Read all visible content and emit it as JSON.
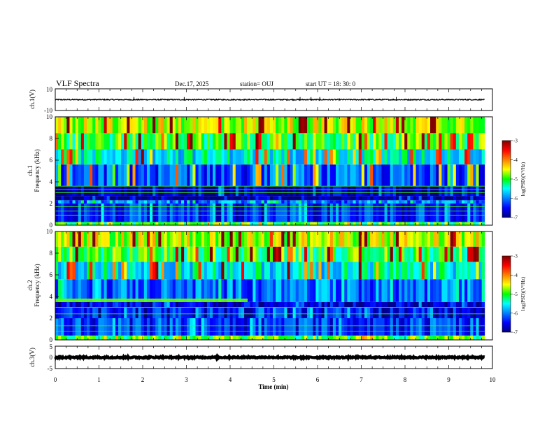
{
  "header": {
    "title": "VLF Spectra",
    "date": "Dec.17, 2025",
    "station": "station= OUJ",
    "start": "start  UT =   18: 30: 0"
  },
  "chart_data": [
    {
      "id": "ch1-waveform",
      "type": "line",
      "ylabel": "ch.1(V)",
      "ylim": [
        -10,
        10
      ],
      "yticks": [
        "10",
        "-10"
      ],
      "baseline": 0,
      "amplitude": 0.5,
      "spikes_min": [
        1.8,
        2.95,
        5.6,
        5.85,
        6.05,
        7.8
      ]
    },
    {
      "id": "ch1-spectrogram",
      "type": "heatmap",
      "ylabel": "ch.1\nFrequency  (kHz)",
      "ylim": [
        0,
        10
      ],
      "yticks": [
        "0",
        "2",
        "4",
        "6",
        "8",
        "10"
      ],
      "bands": [
        {
          "from_khz": 0.0,
          "to_khz": 0.3,
          "level": -5.0
        },
        {
          "from_khz": 0.3,
          "to_khz": 2.0,
          "level": -6.4
        },
        {
          "from_khz": 2.0,
          "to_khz": 2.3,
          "level": -6.0
        },
        {
          "from_khz": 2.3,
          "to_khz": 2.7,
          "level": -7.0
        },
        {
          "from_khz": 2.7,
          "to_khz": 3.6,
          "level": -6.8
        },
        {
          "from_khz": 3.6,
          "to_khz": 5.6,
          "level": -6.2
        },
        {
          "from_khz": 5.6,
          "to_khz": 7.0,
          "level": -5.5
        },
        {
          "from_khz": 7.0,
          "to_khz": 8.5,
          "level": -5.0
        },
        {
          "from_khz": 8.5,
          "to_khz": 10.0,
          "level": -4.6
        }
      ],
      "bright_lines_khz": [
        0.9,
        1.3,
        1.7,
        3.0,
        3.3,
        3.6
      ]
    },
    {
      "id": "ch2-spectrogram",
      "type": "heatmap",
      "ylabel": "ch.2\nFrequency  (kHz)",
      "ylim": [
        0,
        10
      ],
      "yticks": [
        "0",
        "2",
        "4",
        "6",
        "8",
        "10"
      ],
      "bands": [
        {
          "from_khz": 0.0,
          "to_khz": 0.4,
          "level": -5.0
        },
        {
          "from_khz": 0.4,
          "to_khz": 2.0,
          "level": -6.3
        },
        {
          "from_khz": 2.0,
          "to_khz": 3.0,
          "level": -6.5
        },
        {
          "from_khz": 3.0,
          "to_khz": 3.5,
          "level": -6.7
        },
        {
          "from_khz": 3.5,
          "to_khz": 5.6,
          "level": -6.1
        },
        {
          "from_khz": 5.6,
          "to_khz": 7.2,
          "level": -5.5
        },
        {
          "from_khz": 7.2,
          "to_khz": 8.6,
          "level": -5.0
        },
        {
          "from_khz": 8.6,
          "to_khz": 10.0,
          "level": -4.6
        }
      ],
      "tone_line": {
        "freq_khz": 3.65,
        "from_min": 0,
        "to_min": 4.4,
        "level": -4.8
      },
      "bright_lines_khz": [
        0.8,
        1.3,
        2.4,
        3.0
      ]
    },
    {
      "id": "ch3-waveform",
      "type": "line",
      "ylabel": "ch.3(V)",
      "ylim": [
        -5,
        5
      ],
      "yticks": [
        "5",
        "0",
        "-5"
      ],
      "baseline": 0,
      "amplitude": 0.3
    }
  ],
  "x_axis": {
    "label": "Time  (min)",
    "range_min": [
      0,
      10
    ],
    "data_end_min": 9.82,
    "ticks": [
      "0",
      "1",
      "2",
      "3",
      "4",
      "5",
      "6",
      "7",
      "8",
      "9",
      "10"
    ]
  },
  "colorbars": [
    {
      "id": "cb1",
      "label": "log(PSD)(V²/Hz)",
      "range": [
        -7,
        -3
      ],
      "ticks": [
        "-3",
        "-4",
        "-5",
        "-6",
        "-7"
      ]
    },
    {
      "id": "cb2",
      "label": "log(PSD)(V²/Hz)",
      "range": [
        -7,
        -3
      ],
      "ticks": [
        "-3",
        "-4",
        "-5",
        "-6",
        "-7"
      ]
    }
  ],
  "colors": {
    "ink": "#000000",
    "colormap": [
      "#00007f",
      "#0000ff",
      "#00ffff",
      "#00ff00",
      "#ffff00",
      "#ff0000",
      "#7f0000"
    ]
  }
}
